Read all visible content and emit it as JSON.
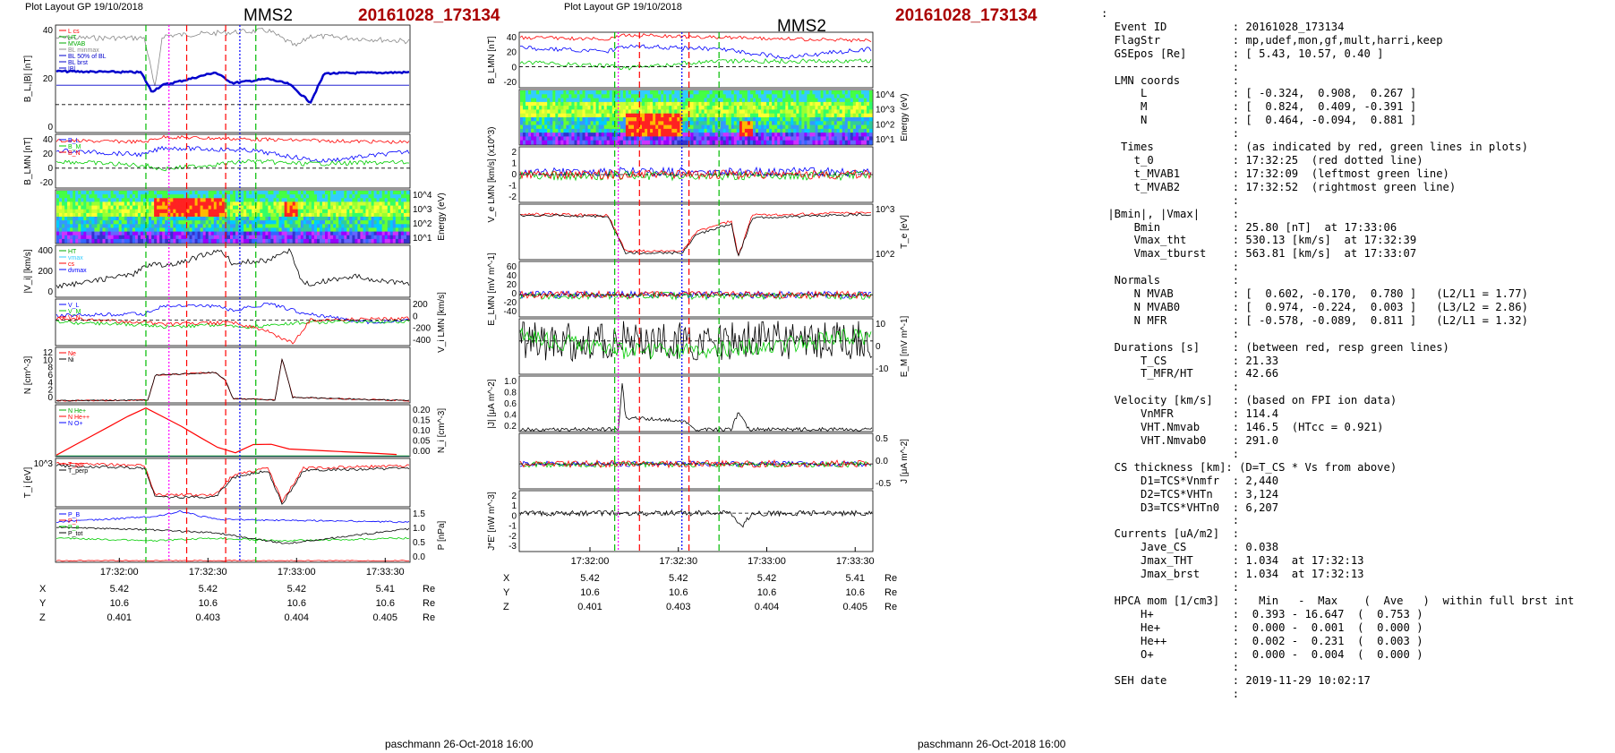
{
  "left": {
    "header": "Plot Layout GP 19/10/2018",
    "spacecraft": "MMS2",
    "event": "20161028_173134",
    "footer": "paschmann 26-Oct-2018 16:00",
    "time_ticks": [
      "17:32:00",
      "17:32:30",
      "17:33:00",
      "17:33:30"
    ],
    "pos_rows": [
      {
        "label": "X",
        "values": [
          "5.42",
          "5.42",
          "5.42",
          "5.41"
        ],
        "unit": "Re"
      },
      {
        "label": "Y",
        "values": [
          "10.6",
          "10.6",
          "10.6",
          "10.6"
        ],
        "unit": "Re"
      },
      {
        "label": "Z",
        "values": [
          "0.401",
          "0.403",
          "0.404",
          "0.405"
        ],
        "unit": "Re"
      }
    ],
    "panels": [
      {
        "name": "bl-b",
        "ylabel": "B_L,|B| [nT]",
        "yticks": [
          "40",
          "20",
          "0"
        ],
        "legend": [
          "L cs",
          "HT",
          "MVAB",
          "BL minmax",
          "BL 50% of BL",
          "BL brst",
          "|B|"
        ],
        "legend_colors": [
          "#f00",
          "#0a0",
          "#0a0",
          "#888",
          "#00c",
          "#00c",
          "#00c"
        ]
      },
      {
        "name": "blmn",
        "ylabel": "B_LMN [nT]",
        "yticks": [
          "40",
          "20",
          "0",
          "-20"
        ],
        "legend": [
          "B_L",
          "B_M",
          "B_N"
        ],
        "legend_colors": [
          "#00f",
          "#0c0",
          "#f00"
        ]
      },
      {
        "name": "ion-spec",
        "ylabel": "Energy (eV)",
        "yticks": [
          "10^4",
          "10^3",
          "10^2",
          "10^1"
        ]
      },
      {
        "name": "vi-mag",
        "ylabel": "|V_i| [km/s]",
        "yticks": [
          "400",
          "200",
          "0"
        ],
        "legend": [
          "HT",
          "vmax",
          "cs",
          "dvmax"
        ],
        "legend_colors": [
          "#0a0",
          "#3cf",
          "#f00",
          "#00f"
        ]
      },
      {
        "name": "vilmn",
        "ylabel": "V_i LMN [km/s]",
        "yticks": [
          "200",
          "0",
          "-200",
          "-400"
        ],
        "legend": [
          "V_L",
          "V_M",
          "V_N"
        ],
        "legend_colors": [
          "#00f",
          "#0c0",
          "#f00"
        ]
      },
      {
        "name": "density",
        "ylabel": "N [cm^-3]",
        "yticks": [
          "12",
          "10",
          "8",
          "6",
          "4",
          "2",
          "0"
        ],
        "legend": [
          "Ne",
          "Ni"
        ],
        "legend_colors": [
          "#f00",
          "#000"
        ]
      },
      {
        "name": "hpca",
        "ylabel": "N_i [cm^-3]",
        "yticks": [
          "0.20",
          "0.15",
          "0.10",
          "0.05",
          "0.00"
        ],
        "legend": [
          "N He+",
          "N He++",
          "N O+"
        ],
        "legend_colors": [
          "#0a0",
          "#f00",
          "#00f"
        ]
      },
      {
        "name": "ti",
        "ylabel": "T_i [eV]",
        "yticks": [
          "10^3"
        ],
        "legend": [
          "T_par",
          "T_perp"
        ],
        "legend_colors": [
          "#f00",
          "#000"
        ]
      },
      {
        "name": "pressure",
        "ylabel": "P [nPa]",
        "yticks": [
          "1.5",
          "1.0",
          "0.5",
          "0.0"
        ],
        "legend": [
          "P_B",
          "P_i",
          "P_e",
          "P_tot"
        ],
        "legend_colors": [
          "#00f",
          "#f00",
          "#0c0",
          "#000"
        ]
      }
    ]
  },
  "middle": {
    "header": "Plot Layout GP 19/10/2018",
    "spacecraft": "MMS2",
    "event": "20161028_173134",
    "footer": "paschmann 26-Oct-2018 16:00",
    "time_ticks": [
      "17:32:00",
      "17:32:30",
      "17:33:00",
      "17:33:30"
    ],
    "pos_rows": [
      {
        "label": "X",
        "values": [
          "5.42",
          "5.42",
          "5.42",
          "5.41"
        ],
        "unit": "Re"
      },
      {
        "label": "Y",
        "values": [
          "10.6",
          "10.6",
          "10.6",
          "10.6"
        ],
        "unit": "Re"
      },
      {
        "label": "Z",
        "values": [
          "0.401",
          "0.403",
          "0.404",
          "0.405"
        ],
        "unit": "Re"
      }
    ],
    "panels": [
      {
        "name": "blmn",
        "ylabel": "B_LMN [nT]",
        "yticks": [
          "40",
          "20",
          "0",
          "-20"
        ]
      },
      {
        "name": "e-spec",
        "ylabel": "Energy (eV)",
        "yticks": [
          "10^4",
          "10^3",
          "10^2",
          "10^1"
        ]
      },
      {
        "name": "velmn",
        "ylabel": "V_e LMN [km/s] (x10^3)",
        "yticks": [
          "2",
          "1",
          "0",
          "-1",
          "-2"
        ]
      },
      {
        "name": "te",
        "ylabel": "T_e [eV]",
        "yticks": [
          "10^3",
          "10^2"
        ]
      },
      {
        "name": "elmn",
        "ylabel": "E_LMN [mV m^-1]",
        "yticks": [
          "60",
          "40",
          "20",
          "0",
          "-20",
          "-40"
        ]
      },
      {
        "name": "em",
        "ylabel": "E_M [mV m^-1]",
        "yticks": [
          "10",
          "0",
          "-10"
        ]
      },
      {
        "name": "jmag",
        "ylabel": "|J| [μA m^-2]",
        "yticks": [
          "1.0",
          "0.8",
          "0.6",
          "0.4",
          "0.2"
        ]
      },
      {
        "name": "jlmn",
        "ylabel": "J [μA m^-2]",
        "yticks": [
          "0.5",
          "0.0",
          "-0.5"
        ]
      },
      {
        "name": "je",
        "ylabel": "J*E' [nW m^-3]",
        "yticks": [
          "2",
          "1",
          "0",
          "-1",
          "-2",
          "-3"
        ]
      }
    ]
  },
  "info_text": [
    ":",
    "  Event ID          : 20161028_173134",
    "  FlagStr           : mp,udef,mon,gf,mult,harri,keep",
    "  GSEpos [Re]       : [ 5.43, 10.57, 0.40 ]",
    "                    :",
    "  LMN coords        :",
    "      L             : [ -0.324,  0.908,  0.267 ]",
    "      M             : [  0.824,  0.409, -0.391 ]",
    "      N             : [  0.464, -0.094,  0.881 ]",
    "                    :",
    "   Times            : (as indicated by red, green lines in plots)",
    "     t_0            : 17:32:25  (red dotted line)",
    "     t_MVAB1        : 17:32:09  (leftmost green line)",
    "     t_MVAB2        : 17:32:52  (rightmost green line)",
    "                    :",
    " |Bmin|, |Vmax|     :",
    "     Bmin           : 25.80 [nT]  at 17:33:06",
    "     Vmax_tht       : 530.13 [km/s]  at 17:32:39",
    "     Vmax_tburst    : 563.81 [km/s]  at 17:33:07",
    "                    :",
    "  Normals           :",
    "     N MVAB         : [  0.602, -0.170,  0.780 ]   (L2/L1 = 1.77)",
    "     N MVAB0        : [  0.974, -0.224,  0.003 ]   (L3/L2 = 2.86)",
    "     N MFR          : [ -0.578, -0.089,  0.811 ]   (L2/L1 = 1.32)",
    "                    :",
    "  Durations [s]     : (between red, resp green lines)",
    "      T_CS          : 21.33",
    "      T_MFR/HT      : 42.66",
    "                    :",
    "  Velocity [km/s]   : (based on FPI ion data)",
    "      VnMFR         : 114.4",
    "      VHT.Nmvab     : 146.5  (HTcc = 0.921)",
    "      VHT.Nmvab0    : 291.0",
    "                    :",
    "  CS thickness [km]: (D=T_CS * Vs from above)",
    "      D1=TCS*Vnmfr  : 2,440",
    "      D2=TCS*VHTn   : 3,124",
    "      D3=TCS*VHTn0  : 6,207",
    "                    :",
    "  Currents [uA/m2]  :",
    "      Jave_CS       : 0.038",
    "      Jmax_THT      : 1.034  at 17:32:13",
    "      Jmax_brst     : 1.034  at 17:32:13",
    "                    :",
    "  HPCA mom [1/cm3]  :   Min   -  Max    (  Ave   )  within full brst int",
    "      H+            :  0.393 - 16.647  (  0.753 )",
    "      He+           :  0.000 -  0.001  (  0.000 )",
    "      He++          :  0.002 -  0.231  (  0.003 )",
    "      O+            :  0.000 -  0.004  (  0.000 )",
    "                    :",
    "  SEH date          : 2019-11-29 10:02:17",
    "                    :"
  ],
  "chart_data": [
    {
      "type": "line",
      "title": "MMS2",
      "subtitle": "20161028_173134",
      "x": [
        "17:32:00",
        "17:32:30",
        "17:33:00",
        "17:33:30"
      ],
      "series": [
        {
          "name": "Ni",
          "values": [
            0.5,
            7,
            0.5,
            0.3
          ]
        },
        {
          "name": "Ne",
          "values": [
            0.5,
            7,
            0.5,
            0.3
          ]
        }
      ],
      "markers": {
        "t_0": "17:32:25",
        "t_MVAB1": "17:32:09",
        "t_MVAB2": "17:32:52"
      },
      "ylabel": "N [cm^-3]",
      "ylim": [
        0,
        12
      ]
    },
    {
      "type": "line",
      "title": "MMS2",
      "subtitle": "20161028_173134",
      "x": [
        "17:32:00",
        "17:32:30",
        "17:33:00",
        "17:33:30"
      ],
      "series": [
        {
          "name": "|J|",
          "values": [
            0.02,
            0.15,
            0.2,
            0.02
          ]
        }
      ],
      "ylabel": "|J| [μA m^-2]",
      "ylim": [
        0,
        1.0
      ]
    }
  ]
}
